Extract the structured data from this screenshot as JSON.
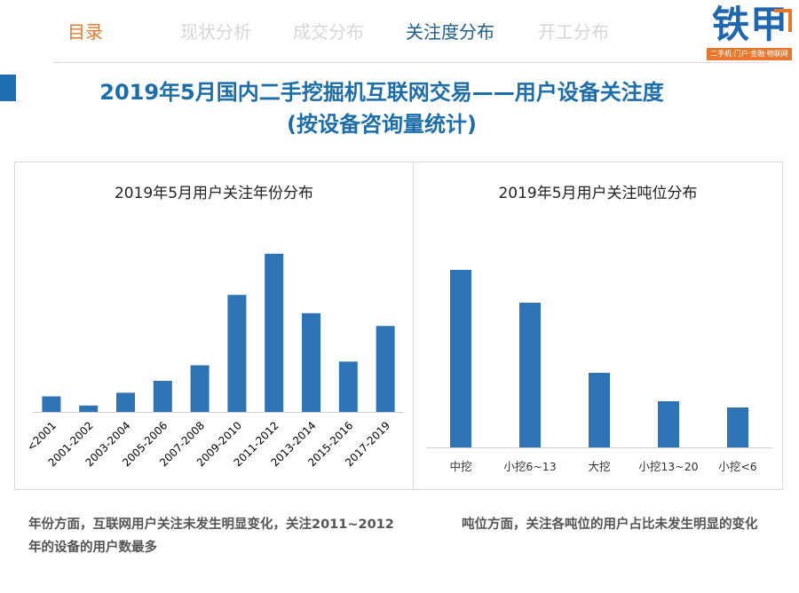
{
  "nav": {
    "items": [
      {
        "label": "目录",
        "state": "active"
      },
      {
        "label": "现状分析",
        "state": "inactive"
      },
      {
        "label": "成交分布",
        "state": "inactive"
      },
      {
        "label": "关注度分布",
        "state": "current"
      },
      {
        "label": "开工分布",
        "state": "inactive"
      }
    ]
  },
  "logo": {
    "text": "铁甲",
    "tagline": "二手机·门户·金融·物联网"
  },
  "title": {
    "line1": "2019年5月国内二手挖掘机互联网交易——用户设备关注度",
    "line2": "(按设备咨询量统计)"
  },
  "colors": {
    "bar": "#2e74b5",
    "title": "#1d6ea8",
    "nav_active": "#e8782d",
    "nav_current": "#1f5f8b"
  },
  "chart_data": [
    {
      "type": "bar",
      "title": "2019年5月用户关注年份分布",
      "categories": [
        "<2001",
        "2001-2002",
        "2003-2004",
        "2005-2006",
        "2007-2008",
        "2009-2010",
        "2011-2012",
        "2013-2014",
        "2015-2016",
        "2017-2019"
      ],
      "values": [
        8.5,
        3.5,
        10.5,
        17,
        25.5,
        64,
        86.5,
        54,
        27.5,
        47
      ],
      "xlabel": "",
      "ylabel": "",
      "ylim": [
        0,
        100
      ],
      "grid": false,
      "tick_rotation": -45
    },
    {
      "type": "bar",
      "title": "2019年5月用户关注吨位分布",
      "categories": [
        "中挖",
        "小挖6~13",
        "大挖",
        "小挖13~20",
        "小挖<6"
      ],
      "values": [
        100,
        81.5,
        42,
        26,
        22.5
      ],
      "xlabel": "",
      "ylabel": "",
      "ylim": [
        0,
        110
      ],
      "grid": false
    }
  ],
  "notes": {
    "left": "年份方面，互联网用户关注未发生明显变化，关注2011~2012年的设备的用户数最多",
    "right": "吨位方面，关注各吨位的用户占比未发生明显的变化"
  }
}
